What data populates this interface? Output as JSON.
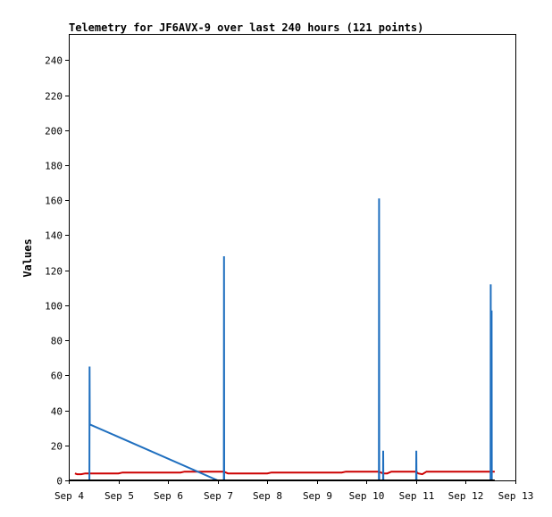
{
  "chart_data": {
    "type": "line",
    "title": "Telemetry for JF6AVX-9 over last 240 hours (121 points)",
    "xlabel": "",
    "ylabel": "Values",
    "xlim": [
      "2024-09-04",
      "2024-09-13"
    ],
    "ylim": [
      0,
      255
    ],
    "x_ticks": [
      "Sep 4",
      "Sep 5",
      "Sep 6",
      "Sep 7",
      "Sep 8",
      "Sep 9",
      "Sep 10",
      "Sep 11",
      "Sep 12",
      "Sep 13"
    ],
    "y_ticks": [
      0,
      20,
      40,
      60,
      80,
      100,
      120,
      140,
      160,
      180,
      200,
      220,
      240
    ],
    "grid": false,
    "legend": "none",
    "series": [
      {
        "color": "#cc0000",
        "points": [
          [
            "2024-09-04T03:00",
            4
          ],
          [
            "2024-09-04T04:00",
            3.5
          ],
          [
            "2024-09-04T06:00",
            3.5
          ],
          [
            "2024-09-04T08:00",
            4
          ],
          [
            "2024-09-04T12:00",
            4
          ],
          [
            "2024-09-05T00:00",
            4
          ],
          [
            "2024-09-05T02:00",
            4.5
          ],
          [
            "2024-09-06T06:00",
            4.5
          ],
          [
            "2024-09-06T08:00",
            5
          ],
          [
            "2024-09-07T03:00",
            5
          ],
          [
            "2024-09-07T05:00",
            4
          ],
          [
            "2024-09-08T00:00",
            4
          ],
          [
            "2024-09-08T02:00",
            4.5
          ],
          [
            "2024-09-09T12:00",
            4.5
          ],
          [
            "2024-09-09T14:00",
            5
          ],
          [
            "2024-09-10T06:00",
            5
          ],
          [
            "2024-09-10T08:00",
            4
          ],
          [
            "2024-09-10T10:00",
            4
          ],
          [
            "2024-09-10T12:00",
            5
          ],
          [
            "2024-09-11T00:00",
            5
          ],
          [
            "2024-09-11T01:00",
            4
          ],
          [
            "2024-09-11T03:00",
            3.5
          ],
          [
            "2024-09-11T05:00",
            5
          ],
          [
            "2024-09-12T12:00",
            5
          ],
          [
            "2024-09-12T14:00",
            5
          ]
        ]
      },
      {
        "color": "#1f6fbf",
        "points": [
          [
            "2024-09-04T10:00",
            0
          ],
          [
            "2024-09-04T10:05",
            65
          ],
          [
            "2024-09-04T10:10",
            32
          ],
          [
            "2024-09-07T00:00",
            0
          ],
          [
            "2024-09-07T03:00",
            0
          ],
          [
            "2024-09-07T03:05",
            128
          ],
          [
            "2024-09-07T03:10",
            0
          ],
          [
            "2024-09-10T06:00",
            0
          ],
          [
            "2024-09-10T06:05",
            161
          ],
          [
            "2024-09-10T06:10",
            0
          ],
          [
            "2024-09-10T08:00",
            0
          ],
          [
            "2024-09-10T08:05",
            17
          ],
          [
            "2024-09-10T08:10",
            0
          ],
          [
            "2024-09-11T00:00",
            0
          ],
          [
            "2024-09-11T00:05",
            17
          ],
          [
            "2024-09-11T00:10",
            0
          ],
          [
            "2024-09-12T12:00",
            0
          ],
          [
            "2024-09-12T12:05",
            112
          ],
          [
            "2024-09-12T12:10",
            0
          ],
          [
            "2024-09-12T12:30",
            97
          ],
          [
            "2024-09-12T12:35",
            0
          ]
        ]
      },
      {
        "color": "#000000",
        "points": [
          [
            "2024-09-04T00:00",
            0
          ],
          [
            "2024-09-12T14:00",
            0
          ]
        ]
      }
    ]
  }
}
